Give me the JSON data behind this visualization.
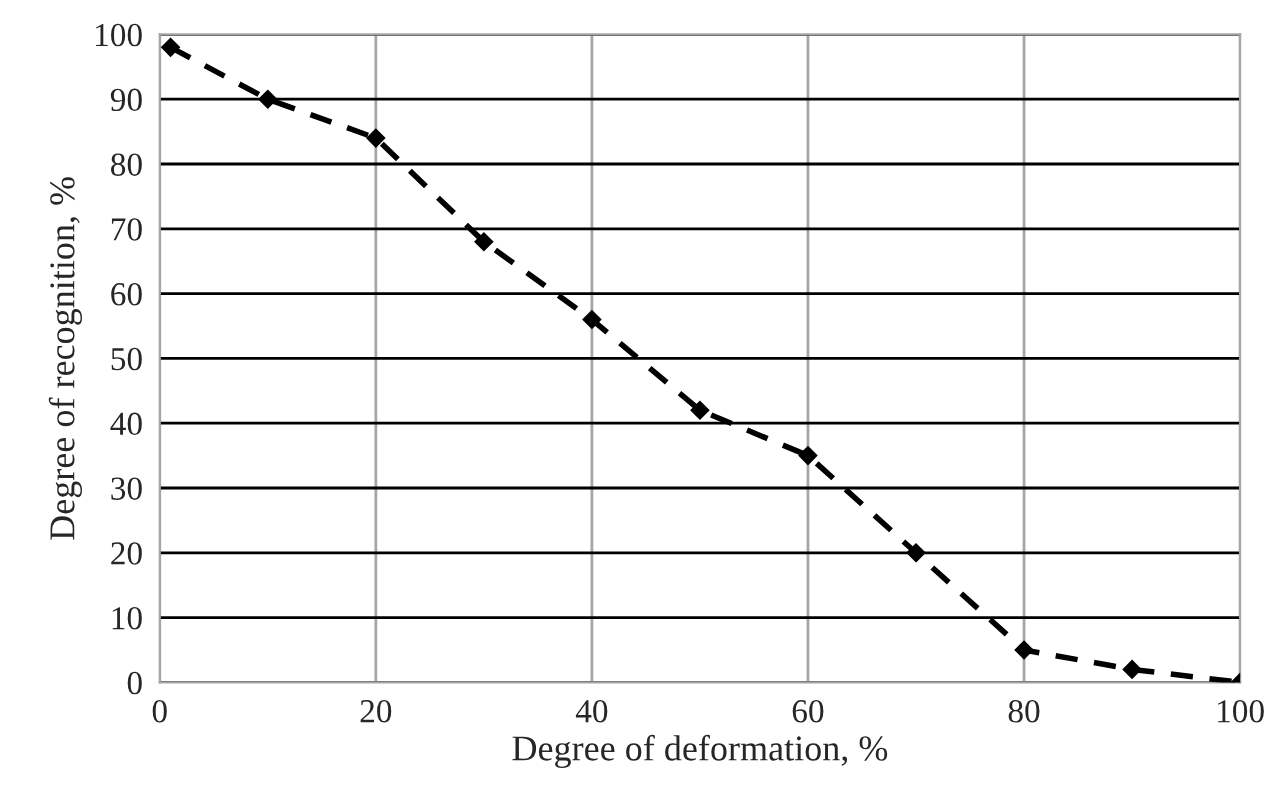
{
  "chart_data": {
    "type": "line",
    "xlabel": "Degree of deformation, %",
    "ylabel": "Degree of recognition, %",
    "x": [
      1,
      10,
      20,
      30,
      40,
      50,
      60,
      70,
      80,
      90,
      100
    ],
    "series": [
      {
        "color": "#000000",
        "values": [
          98,
          90,
          84,
          68,
          56,
          42,
          35,
          20,
          5,
          2,
          0
        ]
      }
    ],
    "xlim": [
      0,
      100
    ],
    "xticks": [
      0,
      20,
      40,
      60,
      80,
      100
    ],
    "ylim": [
      0,
      100
    ],
    "yticks": [
      0,
      10,
      20,
      30,
      40,
      50,
      60,
      70,
      80,
      90,
      100
    ],
    "grid": true,
    "marker": "diamond",
    "line_style": "dashed",
    "legend": false
  }
}
